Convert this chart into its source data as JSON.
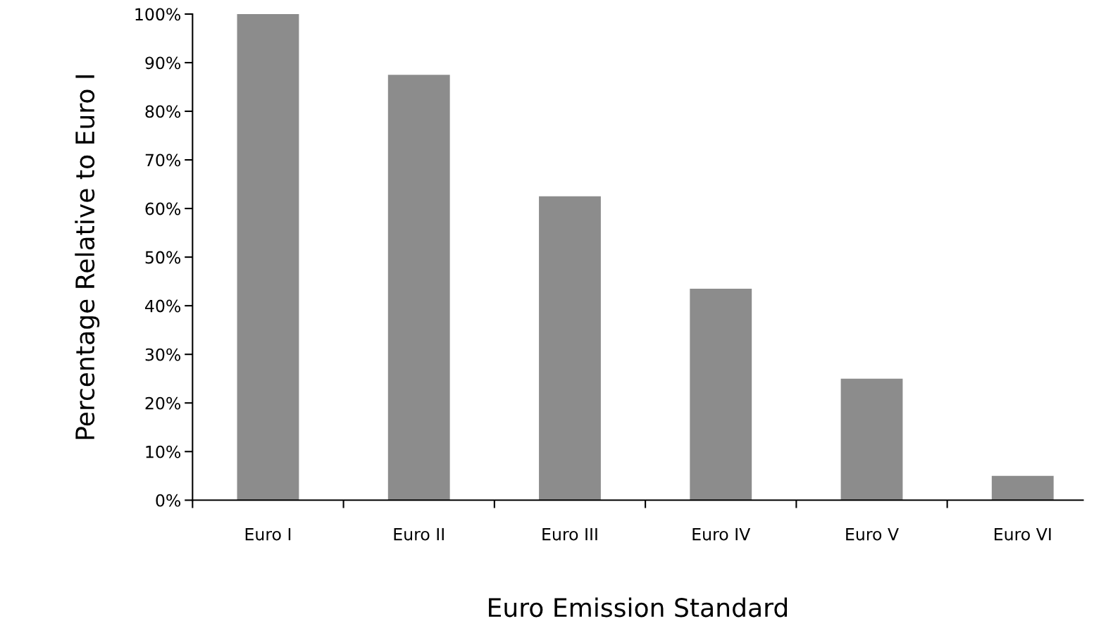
{
  "chart_data": {
    "type": "bar",
    "xlabel": "Euro Emission Standard",
    "ylabel": "Percentage Relative to Euro I",
    "categories": [
      "Euro I",
      "Euro II",
      "Euro III",
      "Euro IV",
      "Euro V",
      "Euro VI"
    ],
    "values": [
      100,
      87.5,
      62.5,
      43.5,
      25,
      5
    ],
    "color": "#8c8c8c",
    "ylim": [
      0,
      100
    ],
    "yticks": [
      {
        "value": 0,
        "label": "0%"
      },
      {
        "value": 10,
        "label": "10%"
      },
      {
        "value": 20,
        "label": "20%"
      },
      {
        "value": 30,
        "label": "30%"
      },
      {
        "value": 40,
        "label": "40%"
      },
      {
        "value": 50,
        "label": "50%"
      },
      {
        "value": 60,
        "label": "60%"
      },
      {
        "value": 70,
        "label": "70%"
      },
      {
        "value": 80,
        "label": "80%"
      },
      {
        "value": 90,
        "label": "90%"
      },
      {
        "value": 100,
        "label": "100%"
      }
    ],
    "grid": false,
    "legend": false
  }
}
